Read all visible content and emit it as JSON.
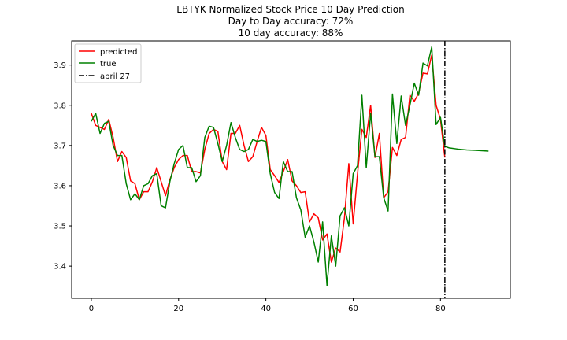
{
  "chart_data": {
    "type": "line",
    "title_lines": [
      "LBTYK Normalized Stock Price 10 Day Prediction",
      "Day to Day accuracy: 72%",
      "10 day accuracy: 88%"
    ],
    "xlabel": "",
    "ylabel": "",
    "xlim": [
      -4.5,
      96
    ],
    "ylim": [
      3.32,
      3.96
    ],
    "xticks": [
      0,
      20,
      40,
      60,
      80
    ],
    "yticks": [
      3.4,
      3.5,
      3.6,
      3.7,
      3.8,
      3.9
    ],
    "grid": false,
    "legend_position": "top-left",
    "series": [
      {
        "name": "predicted",
        "color": "#ff0000",
        "x": [
          0,
          1,
          2,
          3,
          4,
          5,
          6,
          7,
          8,
          9,
          10,
          11,
          12,
          13,
          14,
          15,
          16,
          17,
          18,
          19,
          20,
          21,
          22,
          23,
          24,
          25,
          26,
          27,
          28,
          29,
          30,
          31,
          32,
          33,
          34,
          35,
          36,
          37,
          38,
          39,
          40,
          41,
          42,
          43,
          44,
          45,
          46,
          47,
          48,
          49,
          50,
          51,
          52,
          53,
          54,
          55,
          56,
          57,
          58,
          59,
          60,
          61,
          62,
          63,
          64,
          65,
          66,
          67,
          68,
          69,
          70,
          71,
          72,
          73,
          74,
          75,
          76,
          77,
          78,
          79,
          80,
          81
        ],
        "y": [
          3.78,
          3.75,
          3.745,
          3.74,
          3.765,
          3.72,
          3.66,
          3.685,
          3.67,
          3.612,
          3.605,
          3.565,
          3.585,
          3.585,
          3.61,
          3.645,
          3.61,
          3.575,
          3.615,
          3.645,
          3.665,
          3.675,
          3.675,
          3.635,
          3.635,
          3.632,
          3.69,
          3.73,
          3.74,
          3.735,
          3.66,
          3.64,
          3.73,
          3.73,
          3.75,
          3.7,
          3.66,
          3.672,
          3.71,
          3.745,
          3.725,
          3.64,
          3.625,
          3.608,
          3.635,
          3.665,
          3.612,
          3.6,
          3.583,
          3.585,
          3.51,
          3.53,
          3.52,
          3.465,
          3.48,
          3.41,
          3.445,
          3.435,
          3.52,
          3.655,
          3.505,
          3.63,
          3.74,
          3.72,
          3.8,
          3.67,
          3.73,
          3.57,
          3.585,
          3.695,
          3.675,
          3.715,
          3.72,
          3.825,
          3.81,
          3.83,
          3.88,
          3.878,
          3.925,
          3.8,
          3.765,
          3.67
        ]
      },
      {
        "name": "true",
        "color": "#008000",
        "x": [
          0,
          1,
          2,
          3,
          4,
          5,
          6,
          7,
          8,
          9,
          10,
          11,
          12,
          13,
          14,
          15,
          16,
          17,
          18,
          19,
          20,
          21,
          22,
          23,
          24,
          25,
          26,
          27,
          28,
          29,
          30,
          31,
          32,
          33,
          34,
          35,
          36,
          37,
          38,
          39,
          40,
          41,
          42,
          43,
          44,
          45,
          46,
          47,
          48,
          49,
          50,
          51,
          52,
          53,
          54,
          55,
          56,
          57,
          58,
          59,
          60,
          61,
          62,
          63,
          64,
          65,
          66,
          67,
          68,
          69,
          70,
          71,
          72,
          73,
          74,
          75,
          76,
          77,
          78,
          79,
          80,
          81,
          82,
          84,
          86,
          88,
          91
        ],
        "y": [
          3.76,
          3.78,
          3.73,
          3.755,
          3.76,
          3.7,
          3.675,
          3.675,
          3.605,
          3.565,
          3.58,
          3.565,
          3.6,
          3.605,
          3.625,
          3.63,
          3.55,
          3.545,
          3.61,
          3.655,
          3.69,
          3.7,
          3.645,
          3.645,
          3.61,
          3.625,
          3.72,
          3.748,
          3.745,
          3.705,
          3.66,
          3.7,
          3.757,
          3.72,
          3.69,
          3.685,
          3.69,
          3.715,
          3.71,
          3.713,
          3.71,
          3.63,
          3.583,
          3.568,
          3.66,
          3.635,
          3.635,
          3.57,
          3.54,
          3.472,
          3.5,
          3.46,
          3.41,
          3.51,
          3.352,
          3.475,
          3.4,
          3.525,
          3.545,
          3.5,
          3.63,
          3.65,
          3.825,
          3.645,
          3.78,
          3.672,
          3.672,
          3.57,
          3.537,
          3.828,
          3.705,
          3.823,
          3.75,
          3.8,
          3.855,
          3.825,
          3.905,
          3.898,
          3.945,
          3.752,
          3.77,
          3.698,
          3.694,
          3.691,
          3.689,
          3.688,
          3.686
        ]
      },
      {
        "name": "april 27",
        "color": "#000000",
        "style": "dashdot",
        "orientation": "vertical",
        "x_value": 81
      }
    ]
  }
}
